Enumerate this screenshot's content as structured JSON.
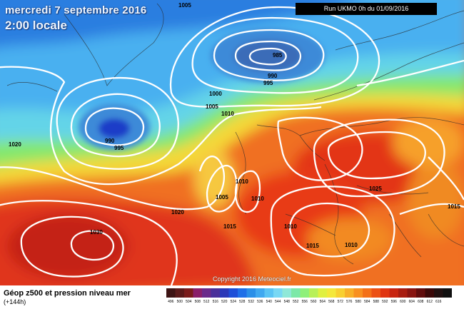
{
  "header": {
    "date": "mercredi 7 septembre 2016",
    "time": "2:00 locale",
    "run": "Run UKMO 0h du 01/09/2016"
  },
  "map": {
    "isobar_labels": [
      {
        "text": "1005",
        "note": "top-center"
      },
      {
        "text": "985"
      },
      {
        "text": "990"
      },
      {
        "text": "995"
      },
      {
        "text": "1000"
      },
      {
        "text": "1005"
      },
      {
        "text": "1010"
      },
      {
        "text": "990"
      },
      {
        "text": "995"
      },
      {
        "text": "1020"
      },
      {
        "text": "1005"
      },
      {
        "text": "1010"
      },
      {
        "text": "1010"
      },
      {
        "text": "1020"
      },
      {
        "text": "1015"
      },
      {
        "text": "1010"
      },
      {
        "text": "1025"
      },
      {
        "text": "1030"
      },
      {
        "text": "1015"
      },
      {
        "text": "1010"
      },
      {
        "text": "1015"
      }
    ],
    "copyright": "Copyright 2016 Meteociel.fr"
  },
  "legend": {
    "title": "Géop z500 et pression niveau mer",
    "subtitle": "(+144h)",
    "colors": [
      "#3d1414",
      "#5a1a1a",
      "#7a1c1c",
      "#8a1f6a",
      "#6a2a8a",
      "#4a2f9a",
      "#2a38b8",
      "#1d4fd8",
      "#1e6fe8",
      "#2a8fe8",
      "#3fa8f0",
      "#5ac4f4",
      "#78d8f4",
      "#8fe8d8",
      "#7ce8a8",
      "#8ef07a",
      "#b8f058",
      "#e0f040",
      "#f4e83a",
      "#f8d030",
      "#f8b028",
      "#f89020",
      "#f47018",
      "#ec5014",
      "#e03410",
      "#c82410",
      "#a81c10",
      "#881410",
      "#600c0c",
      "#3a0808",
      "#201010",
      "#101010"
    ],
    "values": [
      "496",
      "500",
      "504",
      "508",
      "512",
      "516",
      "520",
      "524",
      "528",
      "532",
      "536",
      "540",
      "544",
      "548",
      "552",
      "556",
      "560",
      "564",
      "568",
      "572",
      "576",
      "580",
      "584",
      "588",
      "592",
      "596",
      "600",
      "604",
      "608",
      "612",
      "616",
      ""
    ]
  }
}
